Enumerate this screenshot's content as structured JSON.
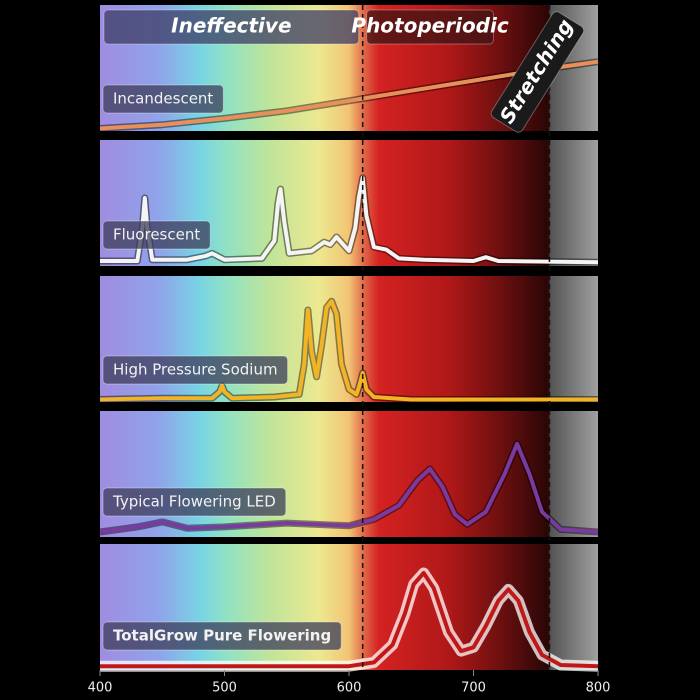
{
  "chart_data": {
    "type": "line",
    "xlim": [
      400,
      800
    ],
    "xticks": [
      400,
      500,
      600,
      700,
      800
    ],
    "ylim": [
      0,
      100
    ],
    "boundaries": [
      611,
      761
    ],
    "regions": [
      "Ineffective",
      "Photoperiodic",
      "Stretching"
    ],
    "series": [
      {
        "name": "Incandescent",
        "color": "#e8905a",
        "x": [
          400,
          450,
          500,
          550,
          600,
          650,
          700,
          750,
          800
        ],
        "values": [
          2,
          5,
          10,
          16,
          24,
          32,
          40,
          48,
          55
        ]
      },
      {
        "name": "Fluorescent",
        "color": "#f4f4f4",
        "x": [
          400,
          430,
          434,
          436,
          438,
          442,
          470,
          485,
          490,
          500,
          530,
          540,
          543,
          545,
          548,
          552,
          570,
          580,
          585,
          590,
          600,
          605,
          608,
          611,
          614,
          620,
          630,
          640,
          660,
          700,
          710,
          720,
          800
        ],
        "values": [
          4,
          4,
          30,
          54,
          30,
          5,
          5,
          8,
          10,
          5,
          6,
          20,
          50,
          61,
          35,
          10,
          12,
          19,
          17,
          23,
          12,
          30,
          55,
          70,
          40,
          15,
          13,
          6,
          5,
          4,
          7,
          4,
          3
        ]
      },
      {
        "name": "High Pressure Sodium",
        "color": "#f2b324",
        "x": [
          400,
          450,
          490,
          496,
          498,
          500,
          506,
          540,
          560,
          564,
          567,
          570,
          574,
          578,
          582,
          586,
          590,
          594,
          600,
          606,
          608,
          611,
          614,
          620,
          650,
          800
        ],
        "values": [
          2,
          3,
          3,
          8,
          13,
          8,
          3,
          4,
          6,
          30,
          73,
          40,
          20,
          45,
          75,
          80,
          70,
          30,
          10,
          6,
          12,
          23,
          10,
          4,
          2,
          2
        ]
      },
      {
        "name": "Typical Flowering LED",
        "color": "#7a3aa0",
        "x": [
          400,
          430,
          450,
          470,
          500,
          550,
          600,
          620,
          640,
          655,
          665,
          675,
          685,
          695,
          710,
          725,
          735,
          745,
          755,
          770,
          800
        ],
        "values": [
          4,
          8,
          12,
          7,
          8,
          11,
          9,
          14,
          25,
          45,
          54,
          40,
          18,
          10,
          20,
          50,
          74,
          50,
          20,
          6,
          4
        ]
      },
      {
        "name": "TotalGrow Pure Flowering",
        "color": "#c01818",
        "x": [
          400,
          600,
          620,
          635,
          645,
          652,
          660,
          668,
          680,
          690,
          700,
          710,
          720,
          728,
          736,
          745,
          755,
          770,
          800
        ],
        "values": [
          3,
          3,
          6,
          20,
          45,
          68,
          77,
          65,
          30,
          15,
          18,
          35,
          55,
          64,
          55,
          30,
          12,
          4,
          3
        ]
      }
    ]
  }
}
